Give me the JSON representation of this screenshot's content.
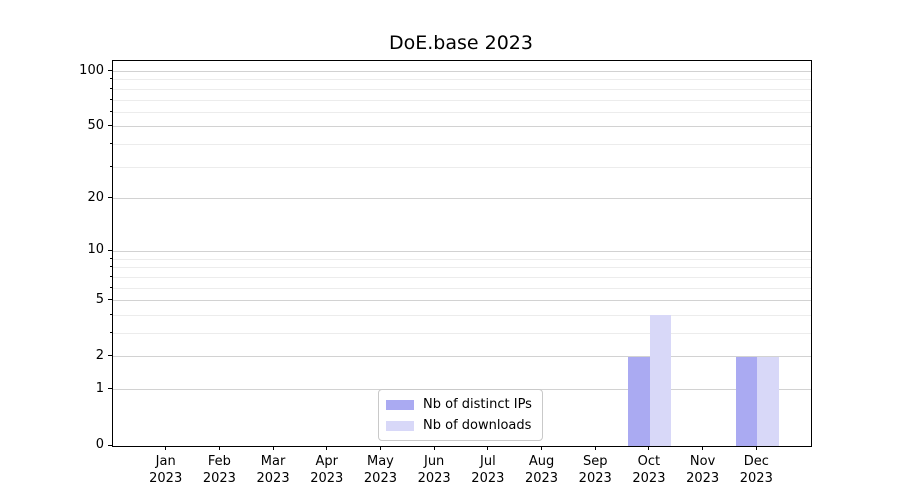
{
  "title": "DoE.base 2023",
  "chart_data": {
    "type": "bar",
    "title": "DoE.base 2023",
    "categories": [
      "Jan",
      "Feb",
      "Mar",
      "Apr",
      "May",
      "Jun",
      "Jul",
      "Aug",
      "Sep",
      "Oct",
      "Nov",
      "Dec"
    ],
    "category_year": "2023",
    "series": [
      {
        "name": "Nb of distinct IPs",
        "color": "#aaaaf2",
        "values": [
          0,
          0,
          0,
          0,
          0,
          0,
          0,
          0,
          0,
          2,
          0,
          2
        ]
      },
      {
        "name": "Nb of downloads",
        "color": "#d8d8f8",
        "values": [
          0,
          0,
          0,
          0,
          0,
          0,
          0,
          0,
          0,
          4,
          0,
          2
        ]
      }
    ],
    "yscale": "log10(1+x)",
    "yticks": [
      0,
      1,
      2,
      5,
      10,
      20,
      50,
      100
    ],
    "minor_yticks": [
      3,
      4,
      6,
      7,
      8,
      9,
      30,
      40,
      60,
      70,
      80,
      90
    ],
    "ylim": [
      0,
      114
    ],
    "xlabel": "",
    "ylabel": "",
    "grid": true,
    "legend_position": "bottom-center-inside",
    "colors": {
      "major_grid": "#d2d2d2",
      "minor_grid": "#ececec",
      "spine": "#000000",
      "background": "#ffffff"
    }
  }
}
